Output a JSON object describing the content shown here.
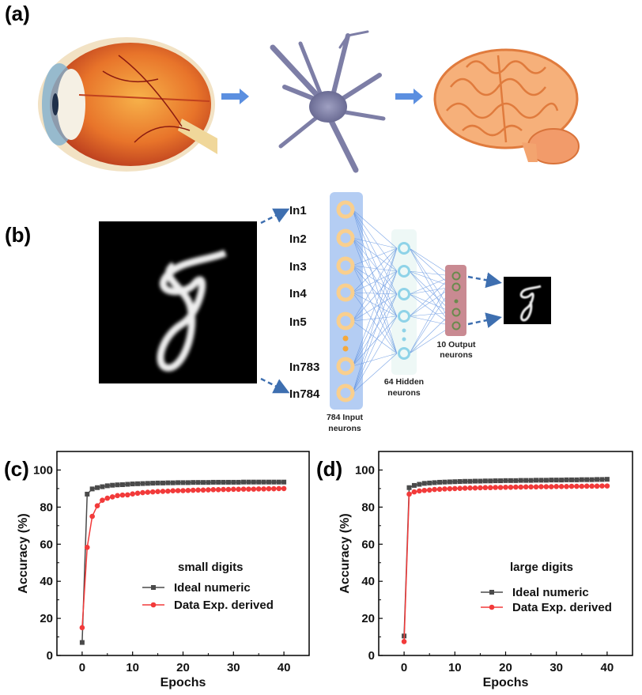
{
  "panels": {
    "a": {
      "label": "(a)"
    },
    "b": {
      "label": "(b)",
      "input_labels": [
        "In1",
        "In2",
        "In3",
        "In4",
        "In5",
        "In783",
        "In784"
      ],
      "input_caption": [
        "784 Input",
        "neurons"
      ],
      "hidden_caption": [
        "64 Hidden",
        "neurons"
      ],
      "output_caption": [
        "10 Output",
        "neurons"
      ]
    },
    "c": {
      "label": "(c)"
    },
    "d": {
      "label": "(d)"
    }
  },
  "colors": {
    "ideal": "#4a4a4a",
    "data": "#f23a3a",
    "arrow": "#5b8fe0",
    "input_layer": "#b4cdf3",
    "input_neuron": "#f9cf8e",
    "hidden_layer": "#eef8f6",
    "hidden_neuron": "#8fd3e8",
    "output_layer": "#c98a92",
    "output_neuron": "#6b8a4e",
    "dashed_arrow": "#3e6fb0"
  },
  "chart_data": [
    {
      "type": "line",
      "title": "small digits",
      "xlabel": "Epochs",
      "ylabel": "Accuracy (%)",
      "xlim": [
        -5,
        45
      ],
      "ylim": [
        0,
        110
      ],
      "xticks": [
        "0",
        "10",
        "20",
        "30",
        "40"
      ],
      "yticks": [
        "0",
        "20",
        "40",
        "60",
        "80",
        "100"
      ],
      "legend": "center-right",
      "grid": false,
      "x": [
        0,
        1,
        2,
        3,
        4,
        5,
        6,
        7,
        8,
        9,
        10,
        11,
        12,
        13,
        14,
        15,
        16,
        17,
        18,
        19,
        20,
        21,
        22,
        23,
        24,
        25,
        26,
        27,
        28,
        29,
        30,
        31,
        32,
        33,
        34,
        35,
        36,
        37,
        38,
        39,
        40
      ],
      "series": [
        {
          "name": "Ideal numeric",
          "marker": "square",
          "values": [
            7,
            87,
            89.8,
            90.5,
            91,
            91.5,
            91.8,
            92,
            92.1,
            92.3,
            92.5,
            92.6,
            92.7,
            92.8,
            92.9,
            93,
            93,
            93.1,
            93.1,
            93.2,
            93.2,
            93.2,
            93.3,
            93.3,
            93.3,
            93.3,
            93.4,
            93.4,
            93.4,
            93.4,
            93.4,
            93.4,
            93.5,
            93.5,
            93.5,
            93.5,
            93.5,
            93.5,
            93.5,
            93.5,
            93.5
          ]
        },
        {
          "name": "Data Exp. derived",
          "marker": "circle",
          "values": [
            15,
            58.3,
            75,
            80.7,
            83.7,
            84.8,
            85.5,
            86.2,
            86.5,
            86.6,
            87.1,
            87.5,
            87.8,
            88,
            88.2,
            88.4,
            88.5,
            88.6,
            88.8,
            88.9,
            88.9,
            89,
            89.1,
            89.2,
            89.2,
            89.3,
            89.4,
            89.4,
            89.5,
            89.5,
            89.6,
            89.6,
            89.7,
            89.7,
            89.7,
            89.8,
            89.8,
            89.9,
            89.9,
            90,
            90
          ]
        }
      ]
    },
    {
      "type": "line",
      "title": "large digits",
      "xlabel": "Epochs",
      "ylabel": "Accuracy (%)",
      "xlim": [
        -5,
        45
      ],
      "ylim": [
        0,
        110
      ],
      "xticks": [
        "0",
        "10",
        "20",
        "30",
        "40"
      ],
      "yticks": [
        "0",
        "20",
        "40",
        "60",
        "80",
        "100"
      ],
      "legend": "center-right",
      "grid": false,
      "x": [
        0,
        1,
        2,
        3,
        4,
        5,
        6,
        7,
        8,
        9,
        10,
        11,
        12,
        13,
        14,
        15,
        16,
        17,
        18,
        19,
        20,
        21,
        22,
        23,
        24,
        25,
        26,
        27,
        28,
        29,
        30,
        31,
        32,
        33,
        34,
        35,
        36,
        37,
        38,
        39,
        40
      ],
      "series": [
        {
          "name": "Ideal numeric",
          "marker": "square",
          "values": [
            10.5,
            90.5,
            91.7,
            92.3,
            92.8,
            93,
            93.2,
            93.4,
            93.5,
            93.6,
            93.7,
            93.8,
            93.9,
            93.9,
            94,
            94,
            94.1,
            94.1,
            94.2,
            94.2,
            94.3,
            94.3,
            94.3,
            94.4,
            94.4,
            94.4,
            94.5,
            94.5,
            94.5,
            94.6,
            94.6,
            94.6,
            94.7,
            94.7,
            94.7,
            94.8,
            94.8,
            94.8,
            94.9,
            94.9,
            95
          ]
        },
        {
          "name": "Data Exp. derived",
          "marker": "circle",
          "values": [
            7.5,
            87,
            88.2,
            88.7,
            89,
            89.2,
            89.5,
            89.6,
            89.8,
            89.9,
            90,
            90.1,
            90.2,
            90.3,
            90.3,
            90.4,
            90.5,
            90.5,
            90.6,
            90.6,
            90.7,
            90.7,
            90.8,
            90.8,
            90.9,
            90.9,
            90.9,
            91,
            91,
            91,
            91.1,
            91.1,
            91.1,
            91.2,
            91.2,
            91.2,
            91.3,
            91.3,
            91.3,
            91.4,
            91.4
          ]
        }
      ]
    }
  ]
}
